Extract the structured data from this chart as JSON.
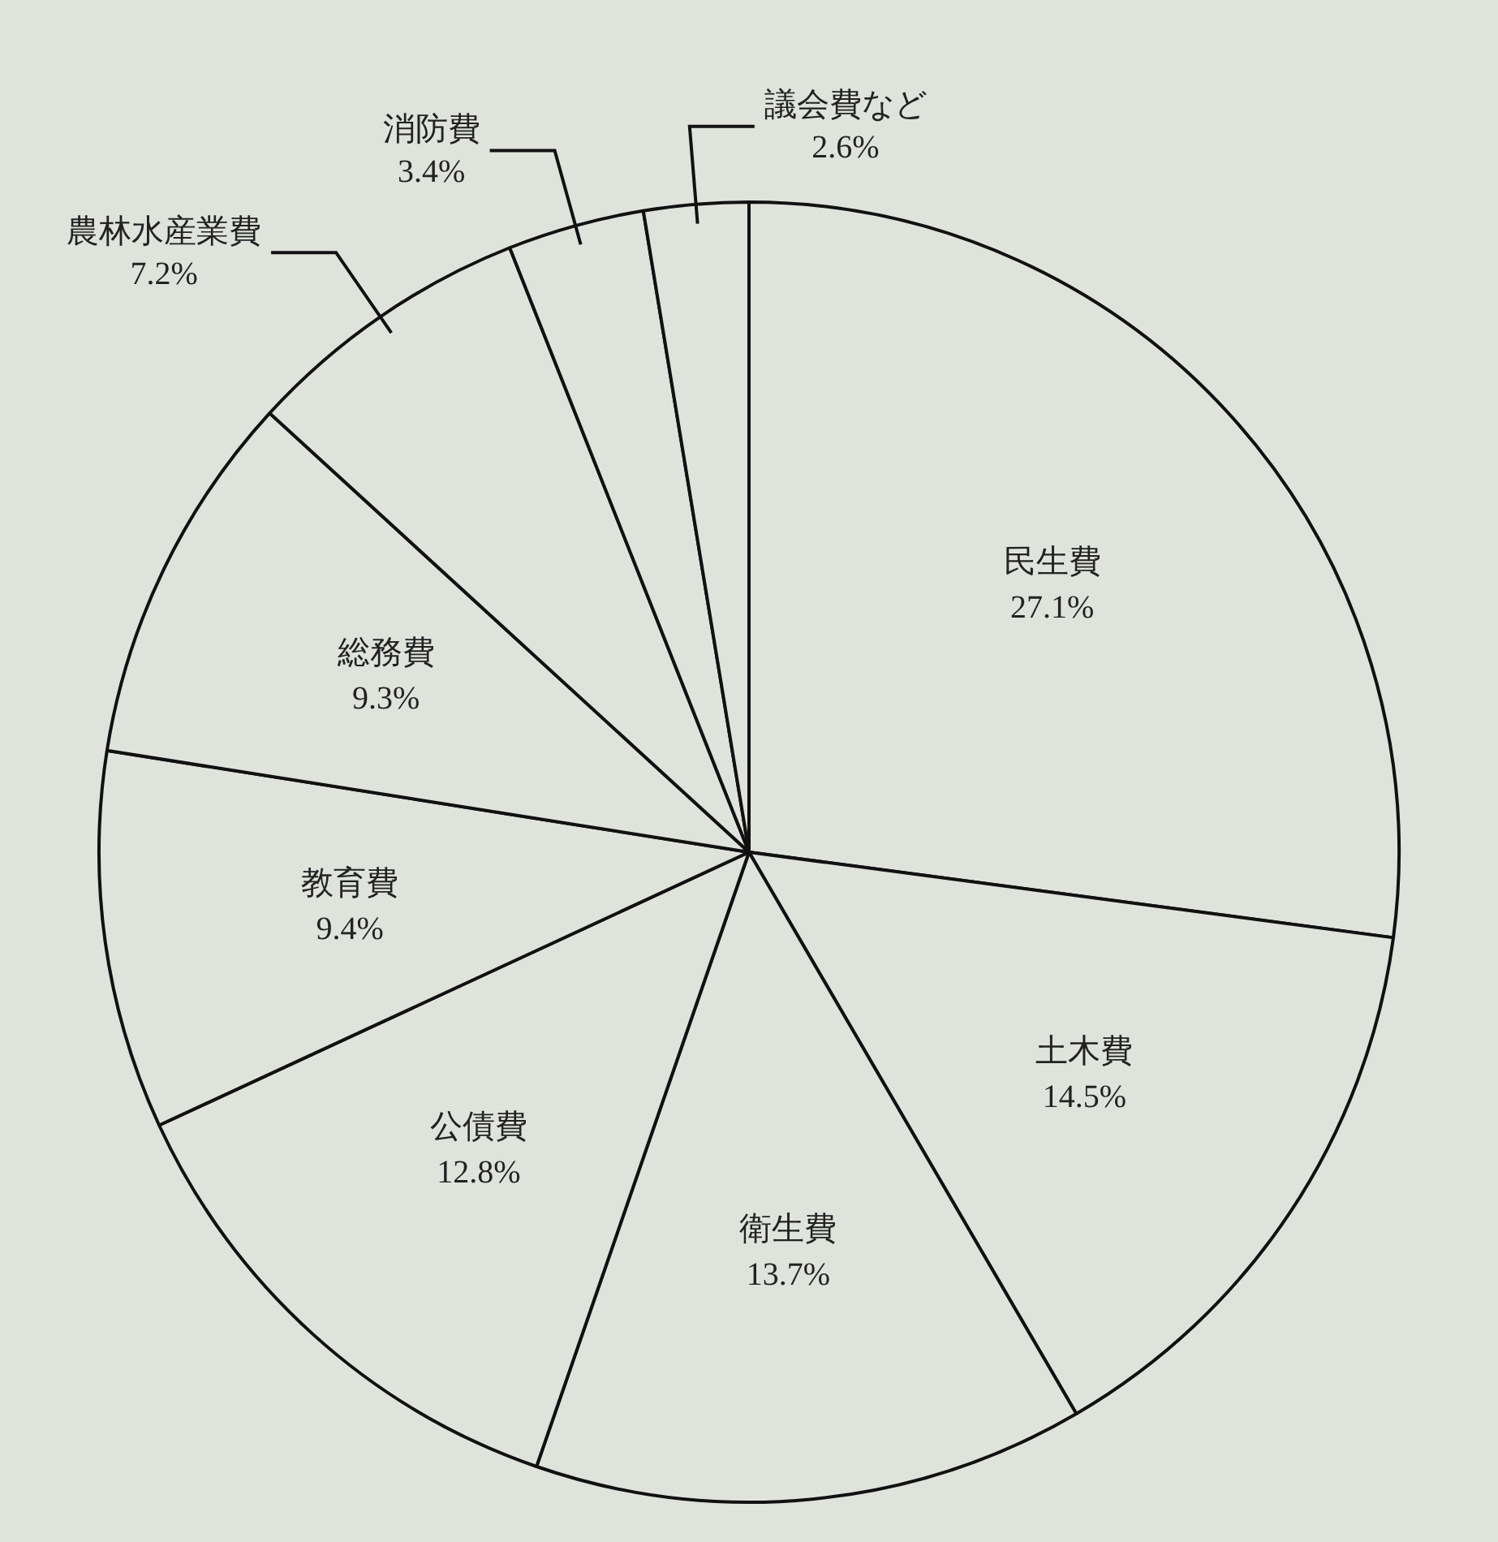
{
  "chart_data": {
    "type": "pie",
    "categories": [
      "民生費",
      "土木費",
      "衛生費",
      "公債費",
      "教育費",
      "総務費",
      "農林水産業費",
      "消防費",
      "議会費など"
    ],
    "values": [
      27.1,
      14.5,
      13.7,
      12.8,
      9.4,
      9.3,
      7.2,
      3.4,
      2.6
    ],
    "value_labels": [
      "27.1%",
      "14.5%",
      "13.7%",
      "12.8%",
      "9.4%",
      "9.3%",
      "7.2%",
      "3.4%",
      "2.6%"
    ],
    "colors": [
      "#dfe3dc",
      "#dfe3dc",
      "#dfe3dc",
      "#dfe3dc",
      "#dfe3dc",
      "#dfe3dc",
      "#dfe3dc",
      "#dfe3dc",
      "#dfe3dc"
    ],
    "legend": false
  }
}
